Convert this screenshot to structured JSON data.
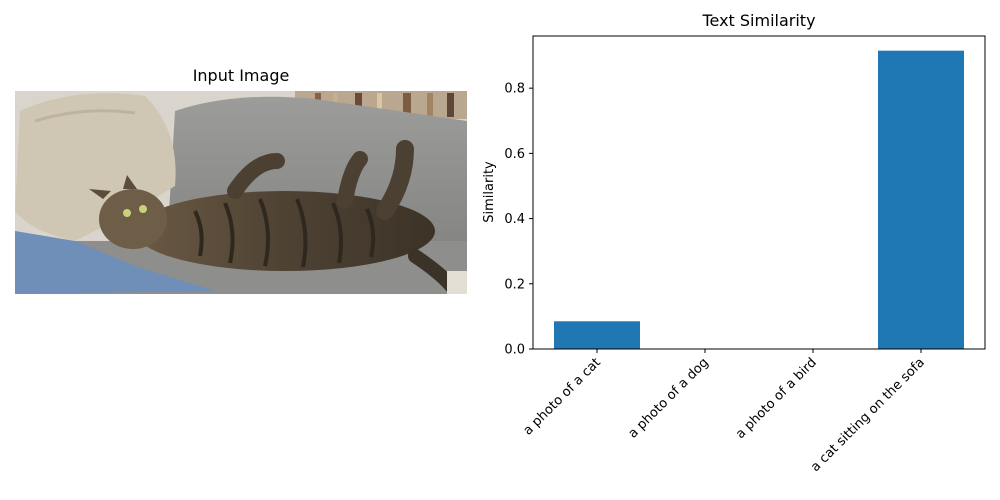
{
  "left_panel": {
    "title": "Input Image"
  },
  "chart_data": {
    "type": "bar",
    "title": "Text Similarity",
    "xlabel": "",
    "ylabel": "Similarity",
    "categories": [
      "a photo of a cat",
      "a photo of a dog",
      "a photo of a bird",
      "a cat sitting on the sofa"
    ],
    "values": [
      0.085,
      0.0,
      0.0,
      0.915
    ],
    "ylim": [
      0,
      0.96
    ],
    "yticks": [
      0.0,
      0.2,
      0.4,
      0.6,
      0.8
    ],
    "ytick_labels": [
      "0.0",
      "0.2",
      "0.4",
      "0.6",
      "0.8"
    ],
    "bar_color": "#1f77b4",
    "grid": false
  }
}
